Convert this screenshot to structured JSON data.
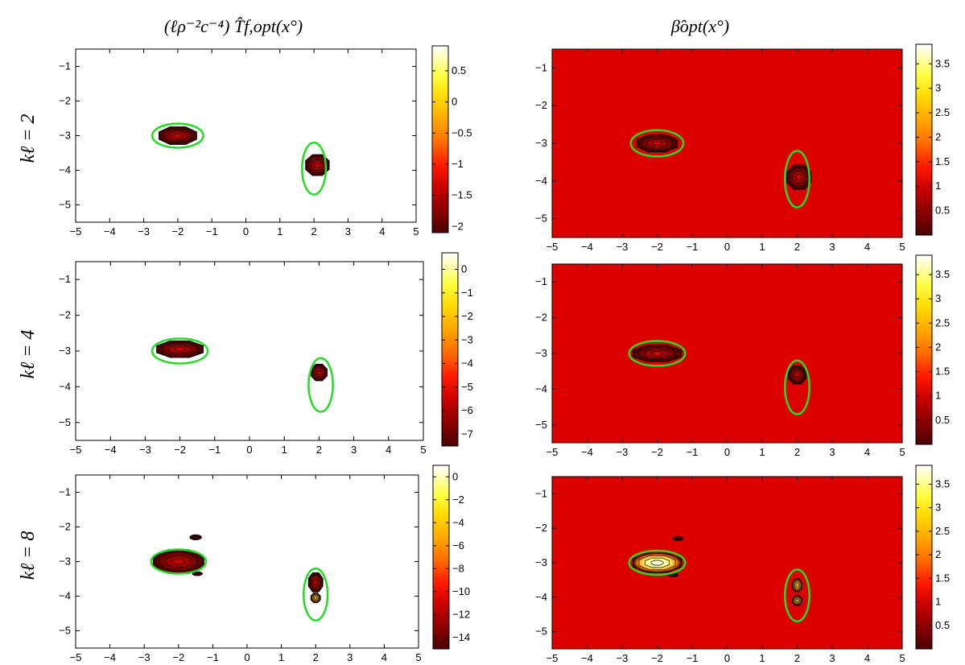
{
  "figure": {
    "col_titles": [
      "(ℓρ⁻²c⁻⁴) T̂f,opt(x°)",
      "β̂opt(x°)"
    ],
    "row_labels": [
      "kℓ = 2",
      "kℓ = 4",
      "kℓ = 8"
    ],
    "ellipse_color": "#22dd22",
    "background_red": "#dd0000"
  },
  "chart_data": [
    {
      "type": "heatmap",
      "name": "T_f_opt kl=2",
      "xlim": [
        -5,
        5
      ],
      "ylim": [
        -5.5,
        -0.5
      ],
      "xticks": [
        "-5",
        "-4",
        "-3",
        "-2",
        "-1",
        "0",
        "1",
        "2",
        "3",
        "4",
        "5"
      ],
      "yticks": [
        "-1",
        "-2",
        "-3",
        "-4",
        "-5"
      ],
      "background": "white",
      "colorbar": {
        "range": [
          -2.1,
          0.9
        ],
        "ticks": [
          "0.5",
          "0",
          "-0.5",
          "-1",
          "-1.5",
          "-2"
        ]
      },
      "features": [
        {
          "kind": "blob",
          "x": -2.0,
          "y": -3.0,
          "w": 1.2,
          "h": 0.55
        },
        {
          "kind": "blob",
          "x": 2.1,
          "y": -3.85,
          "w": 0.75,
          "h": 0.65
        }
      ],
      "ellipses": [
        {
          "cx": -2.0,
          "cy": -3.0,
          "rx": 0.75,
          "ry": 0.35
        },
        {
          "cx": 2.0,
          "cy": -3.95,
          "rx": 0.35,
          "ry": 0.75
        }
      ]
    },
    {
      "type": "heatmap",
      "name": "beta_opt kl=2",
      "xlim": [
        -5,
        5
      ],
      "ylim": [
        -5.5,
        -0.5
      ],
      "xticks": [
        "-5",
        "-4",
        "-3",
        "-2",
        "-1",
        "0",
        "1",
        "2",
        "3",
        "4",
        "5"
      ],
      "yticks": [
        "-1",
        "-2",
        "-3",
        "-4",
        "-5"
      ],
      "background": "red",
      "colorbar": {
        "range": [
          0,
          3.9
        ],
        "ticks": [
          "3.5",
          "3",
          "2.5",
          "2",
          "1.5",
          "1",
          "0.5"
        ]
      },
      "features": [
        {
          "kind": "blob",
          "x": -2.0,
          "y": -3.0,
          "w": 1.25,
          "h": 0.5
        },
        {
          "kind": "blob",
          "x": 2.05,
          "y": -3.9,
          "w": 0.75,
          "h": 0.7
        }
      ],
      "ellipses": [
        {
          "cx": -2.0,
          "cy": -3.0,
          "rx": 0.75,
          "ry": 0.35
        },
        {
          "cx": 2.0,
          "cy": -3.95,
          "rx": 0.35,
          "ry": 0.75
        }
      ]
    },
    {
      "type": "heatmap",
      "name": "T_f_opt kl=4",
      "xlim": [
        -5,
        5
      ],
      "ylim": [
        -5.5,
        -0.5
      ],
      "xticks": [
        "-5",
        "-4",
        "-3",
        "-2",
        "-1",
        "0",
        "1",
        "2",
        "3",
        "4",
        "5"
      ],
      "yticks": [
        "-1",
        "-2",
        "-3",
        "-4",
        "-5"
      ],
      "background": "white",
      "colorbar": {
        "range": [
          -7.5,
          0.7
        ],
        "ticks": [
          "0",
          "-1",
          "-2",
          "-3",
          "-4",
          "-5",
          "-6",
          "-7"
        ]
      },
      "features": [
        {
          "kind": "blob",
          "x": -2.0,
          "y": -2.95,
          "w": 1.45,
          "h": 0.5
        },
        {
          "kind": "blob",
          "x": 2.0,
          "y": -3.6,
          "w": 0.5,
          "h": 0.5
        }
      ],
      "ellipses": [
        {
          "cx": -2.0,
          "cy": -3.0,
          "rx": 0.8,
          "ry": 0.35
        },
        {
          "cx": 2.05,
          "cy": -3.95,
          "rx": 0.35,
          "ry": 0.75
        }
      ]
    },
    {
      "type": "heatmap",
      "name": "beta_opt kl=4",
      "xlim": [
        -5,
        5
      ],
      "ylim": [
        -5.5,
        -0.5
      ],
      "xticks": [
        "-5",
        "-4",
        "-3",
        "-2",
        "-1",
        "0",
        "1",
        "2",
        "3",
        "4",
        "5"
      ],
      "yticks": [
        "-1",
        "-2",
        "-3",
        "-4",
        "-5"
      ],
      "background": "red",
      "colorbar": {
        "range": [
          0,
          3.9
        ],
        "ticks": [
          "3.5",
          "3",
          "2.5",
          "2",
          "1.5",
          "1",
          "0.5"
        ]
      },
      "features": [
        {
          "kind": "blob",
          "x": -2.0,
          "y": -3.0,
          "w": 1.5,
          "h": 0.5
        },
        {
          "kind": "blob",
          "x": 2.0,
          "y": -3.6,
          "w": 0.55,
          "h": 0.55
        }
      ],
      "ellipses": [
        {
          "cx": -2.0,
          "cy": -3.0,
          "rx": 0.8,
          "ry": 0.35
        },
        {
          "cx": 2.0,
          "cy": -3.95,
          "rx": 0.35,
          "ry": 0.75
        }
      ]
    },
    {
      "type": "heatmap",
      "name": "T_f_opt kl=8",
      "xlim": [
        -5,
        5
      ],
      "ylim": [
        -5.5,
        -0.5
      ],
      "xticks": [
        "-5",
        "-4",
        "-3",
        "-2",
        "-1",
        "0",
        "1",
        "2",
        "3",
        "4",
        "5"
      ],
      "yticks": [
        "-1",
        "-2",
        "-3",
        "-4",
        "-5"
      ],
      "background": "white",
      "colorbar": {
        "range": [
          -15,
          1
        ],
        "ticks": [
          "0",
          "-2",
          "-4",
          "-6",
          "-8",
          "-10",
          "-12",
          "-14"
        ]
      },
      "features": [
        {
          "kind": "blob",
          "x": -2.0,
          "y": -3.0,
          "w": 1.6,
          "h": 0.75
        },
        {
          "kind": "small",
          "x": -1.5,
          "y": -2.3,
          "w": 0.35,
          "h": 0.15
        },
        {
          "kind": "small",
          "x": -1.45,
          "y": -3.35,
          "w": 0.3,
          "h": 0.12
        },
        {
          "kind": "blob",
          "x": 2.0,
          "y": -3.6,
          "w": 0.45,
          "h": 0.6
        },
        {
          "kind": "ring",
          "x": 2.0,
          "y": -4.05,
          "w": 0.3,
          "h": 0.3
        }
      ],
      "ellipses": [
        {
          "cx": -2.0,
          "cy": -3.0,
          "rx": 0.8,
          "ry": 0.35
        },
        {
          "cx": 2.0,
          "cy": -3.95,
          "rx": 0.35,
          "ry": 0.75
        }
      ]
    },
    {
      "type": "heatmap",
      "name": "beta_opt kl=8",
      "xlim": [
        -5,
        5
      ],
      "ylim": [
        -5.5,
        -0.5
      ],
      "xticks": [
        "-5",
        "-4",
        "-3",
        "-2",
        "-1",
        "0",
        "1",
        "2",
        "3",
        "4",
        "5"
      ],
      "yticks": [
        "-1",
        "-2",
        "-3",
        "-4",
        "-5"
      ],
      "background": "red",
      "colorbar": {
        "range": [
          0,
          3.9
        ],
        "ticks": [
          "3.5",
          "3",
          "2.5",
          "2",
          "1.5",
          "1",
          "0.5"
        ]
      },
      "features": [
        {
          "kind": "bright",
          "x": -2.0,
          "y": -3.0,
          "w": 1.5,
          "h": 0.6
        },
        {
          "kind": "small",
          "x": -1.4,
          "y": -2.3,
          "w": 0.3,
          "h": 0.12
        },
        {
          "kind": "small",
          "x": -1.55,
          "y": -3.35,
          "w": 0.3,
          "h": 0.12
        },
        {
          "kind": "ring",
          "x": 2.0,
          "y": -3.65,
          "w": 0.3,
          "h": 0.4
        },
        {
          "kind": "ring",
          "x": 2.0,
          "y": -4.1,
          "w": 0.3,
          "h": 0.3
        }
      ],
      "ellipses": [
        {
          "cx": -2.0,
          "cy": -3.0,
          "rx": 0.8,
          "ry": 0.35
        },
        {
          "cx": 2.0,
          "cy": -3.95,
          "rx": 0.35,
          "ry": 0.75
        }
      ]
    }
  ]
}
